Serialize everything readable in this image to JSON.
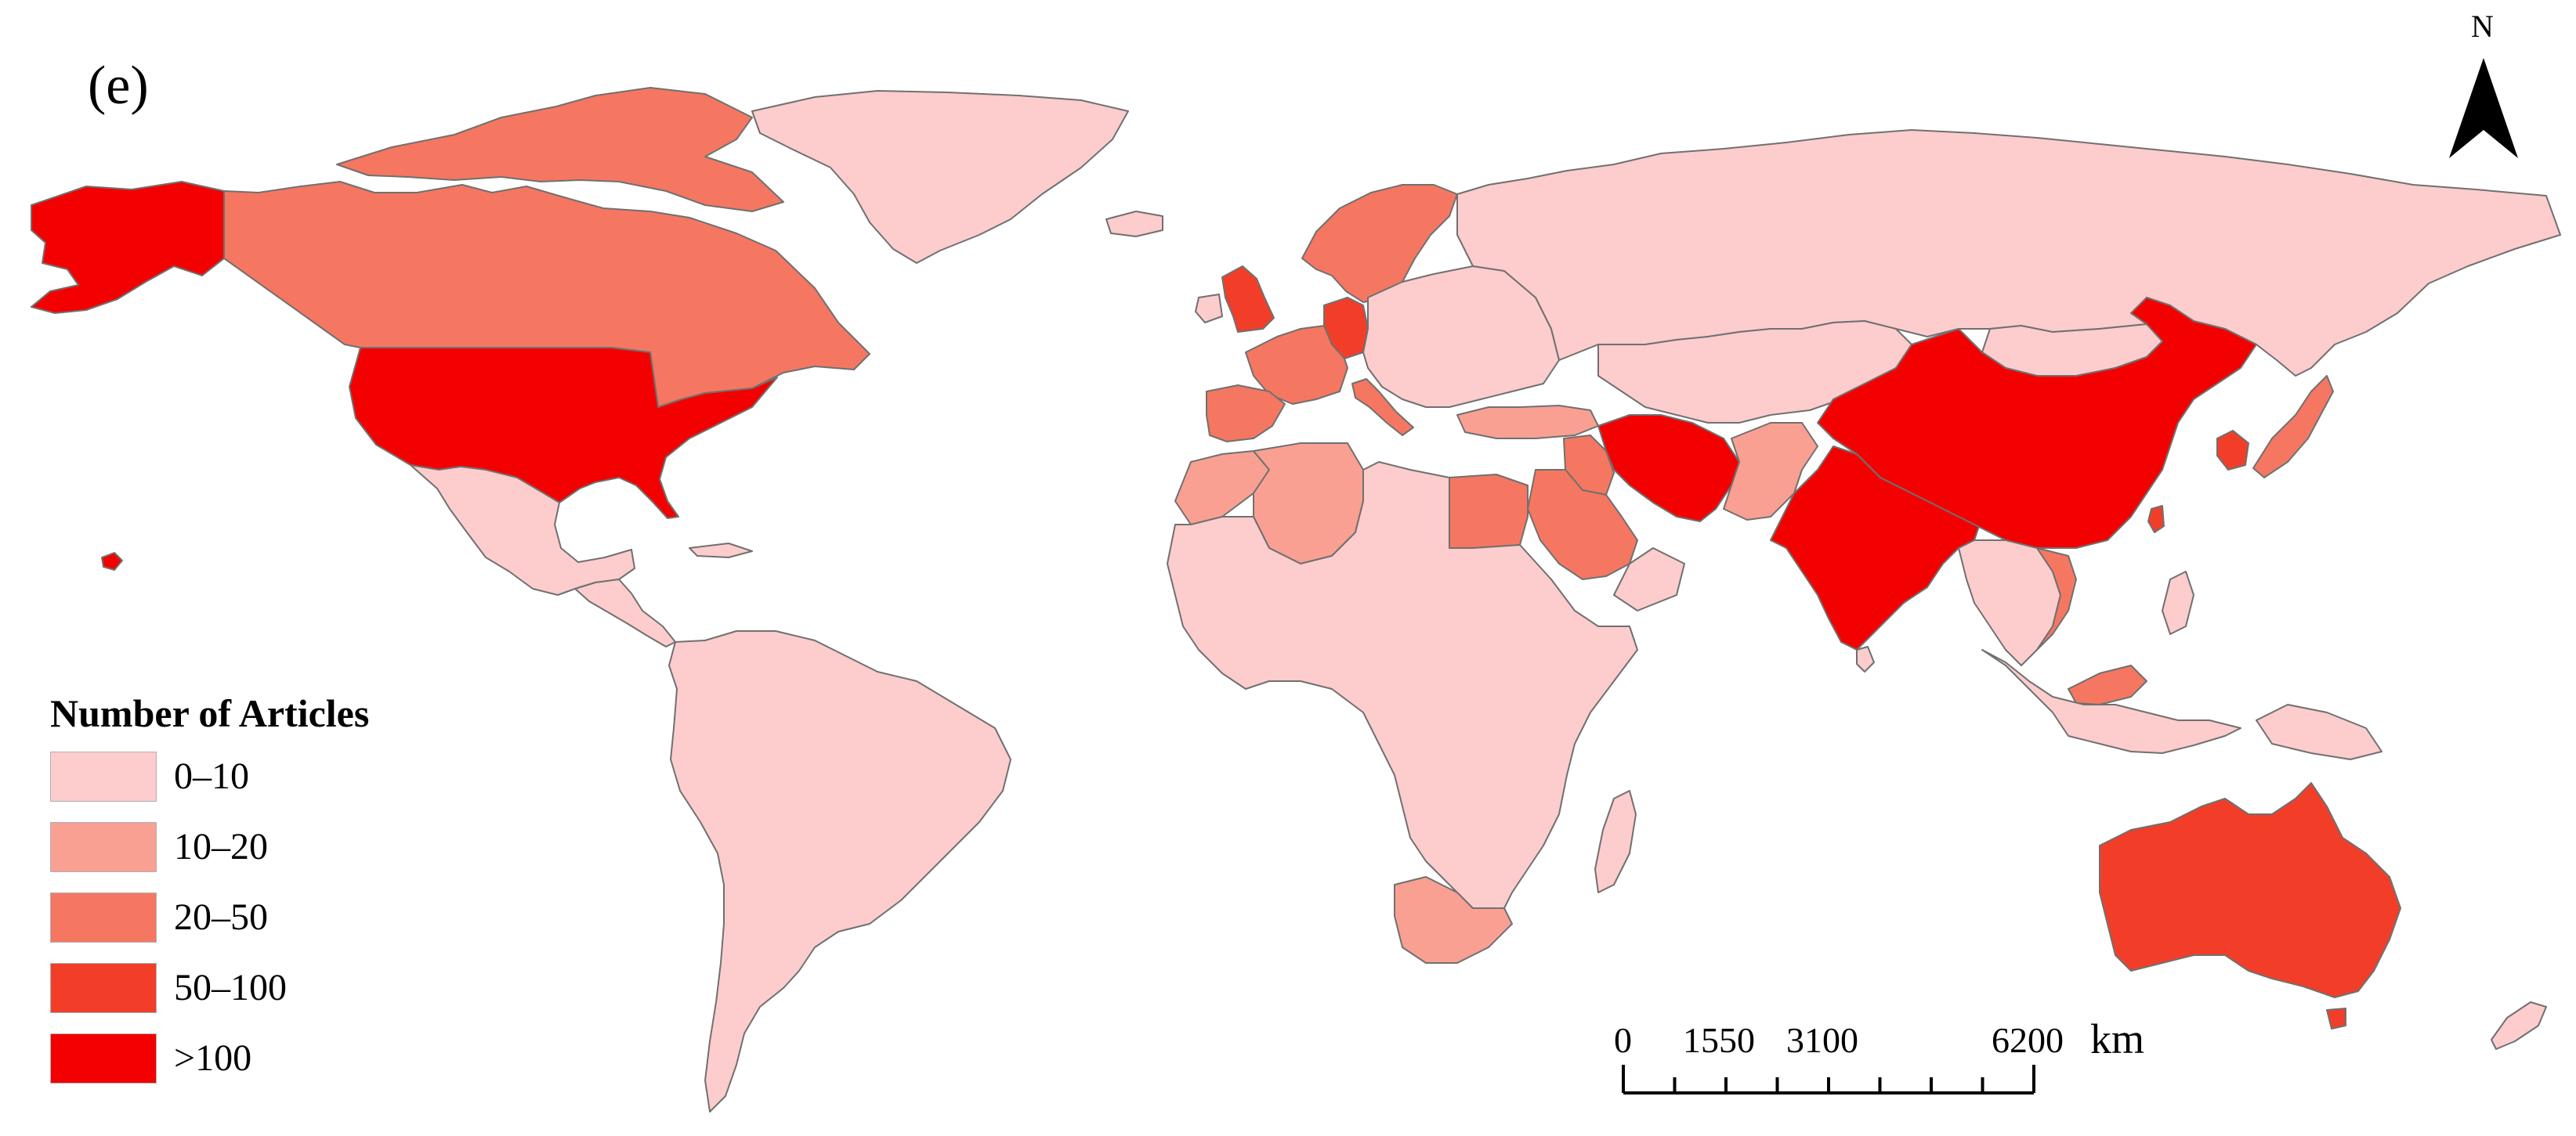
{
  "panel_label": "(e)",
  "north_arrow": {
    "letter": "N"
  },
  "legend": {
    "title": "Number of Articles",
    "classes": [
      {
        "label": "0–10",
        "color": "#fdcccc"
      },
      {
        "label": "10–20",
        "color": "#f9a092"
      },
      {
        "label": "20–50",
        "color": "#f57761"
      },
      {
        "label": "50–100",
        "color": "#f23e28"
      },
      {
        "label": ">100",
        "color": "#f30000"
      }
    ]
  },
  "scale_bar": {
    "labels": [
      "0",
      "1550",
      "3100",
      "6200"
    ],
    "unit": "km"
  },
  "regions": [
    {
      "name": "Alaska",
      "class": 4
    },
    {
      "name": "Canada",
      "class": 2
    },
    {
      "name": "Canadian Arctic Islands",
      "class": 2
    },
    {
      "name": "Greenland",
      "class": 0
    },
    {
      "name": "United States",
      "class": 4
    },
    {
      "name": "Mexico",
      "class": 0
    },
    {
      "name": "Central America",
      "class": 0
    },
    {
      "name": "South America",
      "class": 0
    },
    {
      "name": "Iceland",
      "class": 0
    },
    {
      "name": "United Kingdom",
      "class": 3
    },
    {
      "name": "Western Europe",
      "class": 2
    },
    {
      "name": "Germany",
      "class": 3
    },
    {
      "name": "Italy",
      "class": 2
    },
    {
      "name": "Spain",
      "class": 2
    },
    {
      "name": "Scandinavia",
      "class": 2
    },
    {
      "name": "Eastern Europe",
      "class": 0
    },
    {
      "name": "Russia",
      "class": 0
    },
    {
      "name": "Central Asia",
      "class": 0
    },
    {
      "name": "Turkey",
      "class": 1
    },
    {
      "name": "Iran",
      "class": 4
    },
    {
      "name": "Iraq",
      "class": 2
    },
    {
      "name": "Saudi Arabia",
      "class": 2
    },
    {
      "name": "Pakistan",
      "class": 1
    },
    {
      "name": "India",
      "class": 4
    },
    {
      "name": "China",
      "class": 4
    },
    {
      "name": "Mongolia",
      "class": 0
    },
    {
      "name": "South Korea",
      "class": 3
    },
    {
      "name": "Japan",
      "class": 2
    },
    {
      "name": "Taiwan",
      "class": 3
    },
    {
      "name": "Vietnam",
      "class": 2
    },
    {
      "name": "Southeast Asia",
      "class": 0
    },
    {
      "name": "Malaysia",
      "class": 2
    },
    {
      "name": "Indonesia",
      "class": 0
    },
    {
      "name": "Philippines",
      "class": 0
    },
    {
      "name": "Papua New Guinea",
      "class": 0
    },
    {
      "name": "Australia",
      "class": 3
    },
    {
      "name": "New Zealand",
      "class": 0
    },
    {
      "name": "Algeria",
      "class": 1
    },
    {
      "name": "Morocco",
      "class": 1
    },
    {
      "name": "Egypt",
      "class": 2
    },
    {
      "name": "Africa",
      "class": 0
    },
    {
      "name": "South Africa",
      "class": 1
    },
    {
      "name": "Madagascar",
      "class": 0
    },
    {
      "name": "Sri Lanka",
      "class": 0
    },
    {
      "name": "Hawaii",
      "class": 4
    }
  ]
}
